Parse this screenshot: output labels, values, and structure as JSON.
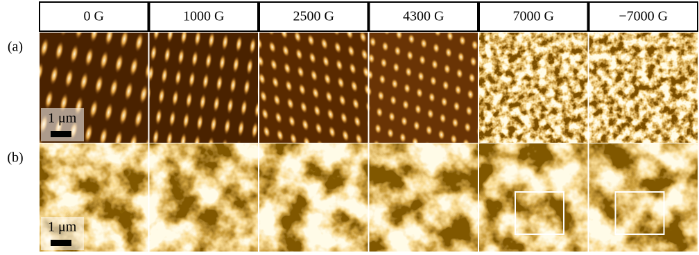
{
  "columns": [
    {
      "label": "0 G"
    },
    {
      "label": "1000 G"
    },
    {
      "label": "2500 G"
    },
    {
      "label": "4300 G"
    },
    {
      "label": "7000 G"
    },
    {
      "label": "−7000 G"
    }
  ],
  "rows": [
    {
      "label": "(a)",
      "scale_bar": "1 μm"
    },
    {
      "label": "(b)",
      "scale_bar": "1 μm"
    }
  ]
}
